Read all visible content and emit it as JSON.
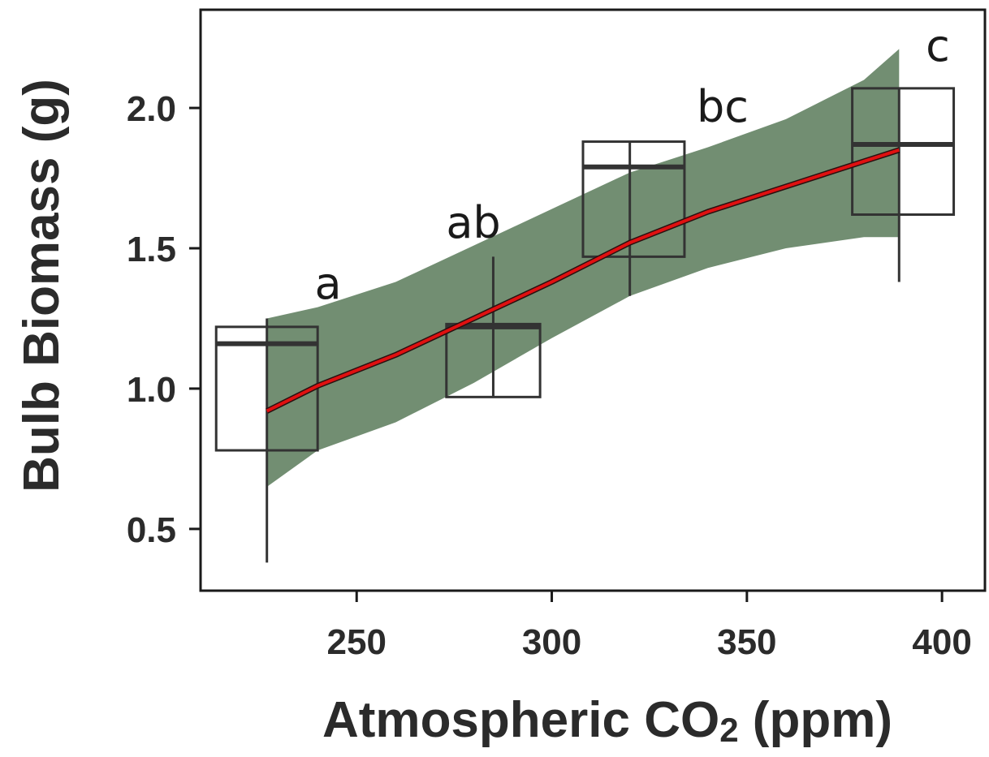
{
  "colors": {
    "band": "#728e72",
    "trend_line": "#e01010",
    "trend_line_shadow": "#2a1010",
    "box_stroke": "#333333",
    "box_fill": "#ffffff",
    "axis": "#1a1a1a"
  },
  "chart_data": {
    "type": "box",
    "title": "",
    "xlabel": "Atmospheric CO",
    "xlabel_sub": "2",
    "xlabel_unit": " (ppm)",
    "ylabel": "Bulb Biomass (g)",
    "xlim": [
      210,
      411
    ],
    "ylim": [
      0.28,
      2.35
    ],
    "xticks": [
      250,
      300,
      350,
      400
    ],
    "xtick_labels": [
      "250",
      "300",
      "350",
      "400"
    ],
    "yticks": [
      0.5,
      1.0,
      1.5,
      2.0
    ],
    "ytick_labels": [
      "0.5",
      "1.0",
      "1.5",
      "2.0"
    ],
    "grid": false,
    "boxes": [
      {
        "x": 227,
        "x_left": 214,
        "x_right": 240,
        "q1": 0.78,
        "median": 1.16,
        "q3": 1.22,
        "whisker_low": 0.38,
        "whisker_high": 1.25,
        "label": "a"
      },
      {
        "x": 285,
        "x_left": 273,
        "x_right": 297,
        "q1": 0.97,
        "median": 1.22,
        "q3": 1.23,
        "whisker_low": 0.97,
        "whisker_high": 1.47,
        "label": "ab"
      },
      {
        "x": 320,
        "x_left": 308,
        "x_right": 334,
        "q1": 1.47,
        "median": 1.79,
        "q3": 1.88,
        "whisker_low": 1.33,
        "whisker_high": 1.88,
        "label": "bc"
      },
      {
        "x": 389,
        "x_left": 377,
        "x_right": 403,
        "q1": 1.62,
        "median": 1.87,
        "q3": 2.07,
        "whisker_low": 1.38,
        "whisker_high": 2.07,
        "label": "c"
      }
    ],
    "trend_line": {
      "x": [
        227,
        240,
        260,
        280,
        300,
        320,
        340,
        360,
        380,
        389
      ],
      "y": [
        0.92,
        1.01,
        1.12,
        1.25,
        1.38,
        1.52,
        1.63,
        1.72,
        1.81,
        1.85
      ]
    },
    "confidence_band": {
      "x": [
        227,
        240,
        260,
        280,
        300,
        320,
        340,
        360,
        380,
        389
      ],
      "lower": [
        0.65,
        0.78,
        0.88,
        1.02,
        1.18,
        1.33,
        1.43,
        1.5,
        1.54,
        1.54
      ],
      "upper": [
        1.25,
        1.29,
        1.38,
        1.51,
        1.64,
        1.77,
        1.86,
        1.96,
        2.1,
        2.21
      ]
    }
  }
}
